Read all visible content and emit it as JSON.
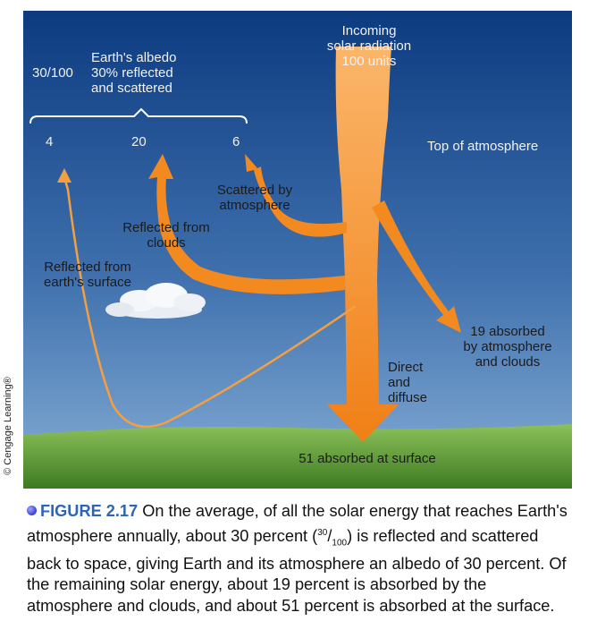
{
  "diagram": {
    "incoming": "Incoming\nsolar radiation\n100 units",
    "albedo": "Earth's albedo\n30% reflected\nand scattered",
    "albedo_ratio": "30/100",
    "num_surface_reflect": "4",
    "num_cloud_reflect": "20",
    "num_scatter": "6",
    "top_atmosphere": "Top of atmosphere",
    "scattered": "Scattered by\natmosphere",
    "reflected_clouds": "Reflected from\nclouds",
    "reflected_surface": "Reflected from\nearth's surface",
    "absorbed_atm": "19 absorbed\nby atmosphere\nand clouds",
    "direct": "Direct\nand\ndiffuse",
    "absorbed_surface": "51 absorbed at surface",
    "copyright": "© Cengage Learning®"
  },
  "caption": {
    "figure_number": "FIGURE 2.17",
    "text_before": " On the average, of all the solar energy that reaches Earth's atmosphere annually, about 30 percent (",
    "frac_num": "30",
    "frac_den": "100",
    "text_after": ") is reflected and scattered back to space, giving Earth and its atmosphere an albedo of 30 percent. Of the remaining solar energy, about 19 percent is absorbed by the atmosphere and clouds, and about 51 percent is absorbed at the surface."
  },
  "colors": {
    "sky_top": "#0d3f86",
    "sky_bottom": "#6e98c5",
    "arrow": "#f28a1f",
    "ground": "#5c9a32",
    "caption_accent": "#2f63b5"
  }
}
